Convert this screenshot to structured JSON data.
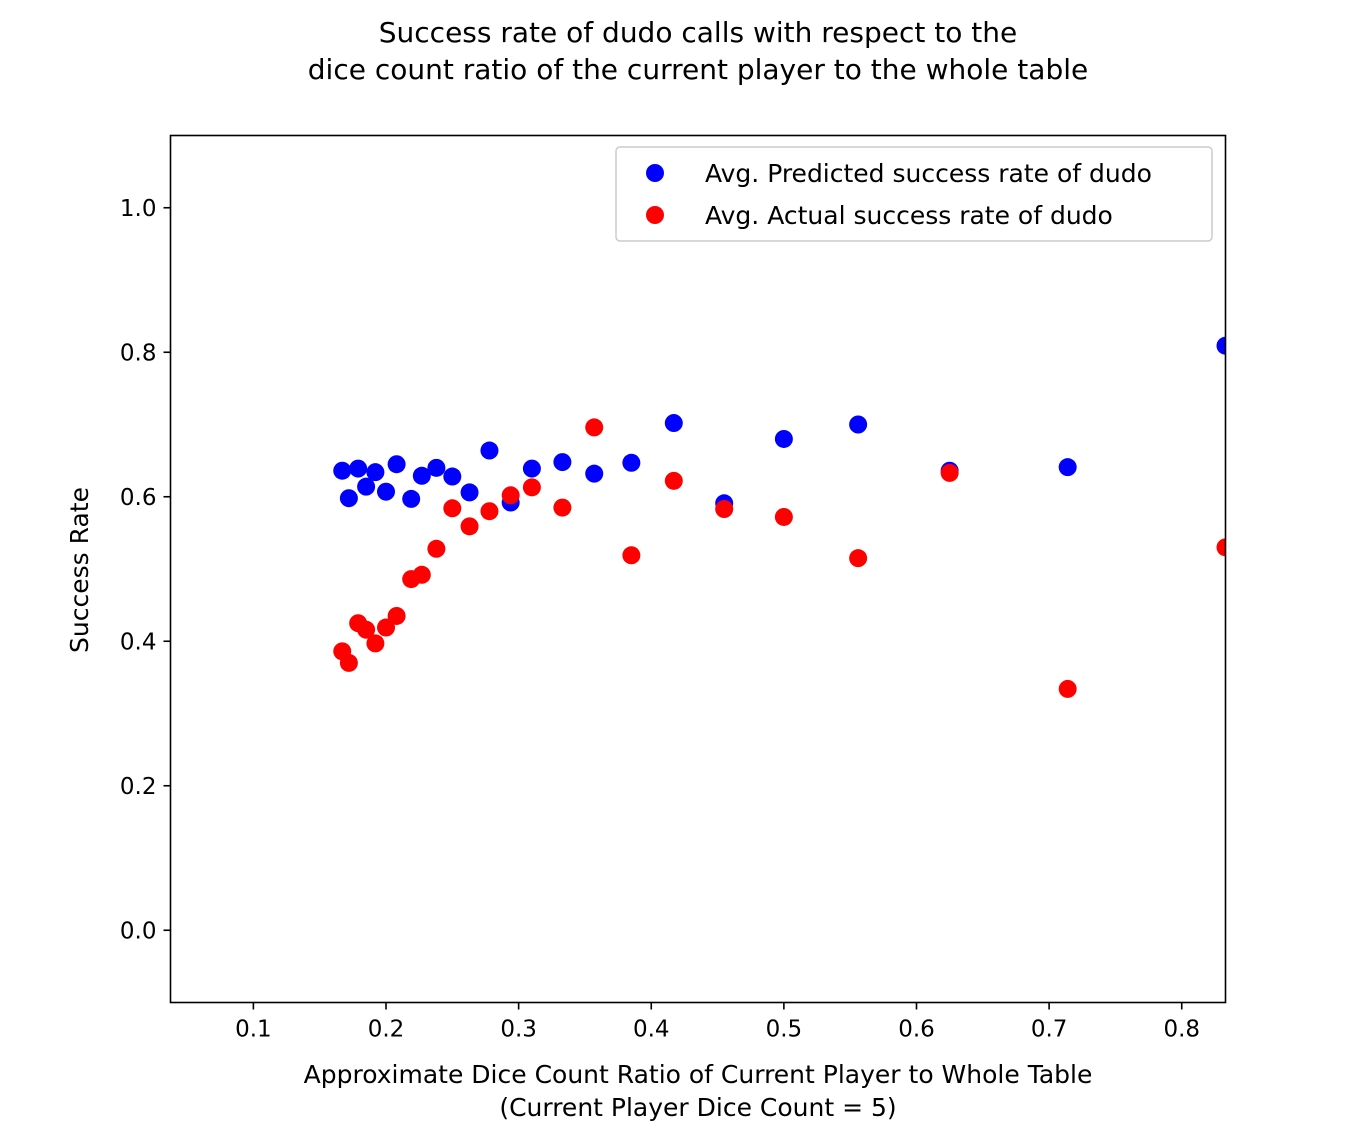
{
  "chart_data": {
    "type": "scatter",
    "title_lines": [
      "Success rate of dudo calls with respect to the",
      "dice count ratio of the current player to the whole table"
    ],
    "xlabel_lines": [
      "Approximate Dice Count Ratio of Current Player to Whole Table",
      "(Current Player Dice Count = 5)"
    ],
    "ylabel": "Success Rate",
    "xlim": [
      0.0375,
      0.833
    ],
    "ylim": [
      -0.1,
      1.1
    ],
    "xticks": [
      "0.1",
      "0.2",
      "0.3",
      "0.4",
      "0.5",
      "0.6",
      "0.7",
      "0.8"
    ],
    "yticks": [
      "0.0",
      "0.2",
      "0.4",
      "0.6",
      "0.8",
      "1.0"
    ],
    "legend_position": "upper right",
    "grid": false,
    "series": [
      {
        "name": "Avg. Predicted success rate of dudo",
        "color": "#0000ff",
        "points": [
          [
            0.167,
            0.636
          ],
          [
            0.172,
            0.598
          ],
          [
            0.179,
            0.639
          ],
          [
            0.185,
            0.614
          ],
          [
            0.192,
            0.634
          ],
          [
            0.2,
            0.607
          ],
          [
            0.208,
            0.645
          ],
          [
            0.219,
            0.597
          ],
          [
            0.227,
            0.629
          ],
          [
            0.238,
            0.64
          ],
          [
            0.25,
            0.628
          ],
          [
            0.263,
            0.606
          ],
          [
            0.278,
            0.664
          ],
          [
            0.294,
            0.592
          ],
          [
            0.31,
            0.639
          ],
          [
            0.333,
            0.648
          ],
          [
            0.357,
            0.632
          ],
          [
            0.385,
            0.647
          ],
          [
            0.417,
            0.702
          ],
          [
            0.455,
            0.591
          ],
          [
            0.5,
            0.68
          ],
          [
            0.556,
            0.7
          ],
          [
            0.625,
            0.636
          ],
          [
            0.714,
            0.641
          ],
          [
            0.833,
            0.809
          ]
        ]
      },
      {
        "name": "Avg. Actual success rate of dudo",
        "color": "#ff0000",
        "points": [
          [
            0.167,
            0.386
          ],
          [
            0.172,
            0.37
          ],
          [
            0.179,
            0.425
          ],
          [
            0.185,
            0.416
          ],
          [
            0.192,
            0.397
          ],
          [
            0.2,
            0.419
          ],
          [
            0.208,
            0.435
          ],
          [
            0.219,
            0.486
          ],
          [
            0.227,
            0.492
          ],
          [
            0.238,
            0.528
          ],
          [
            0.25,
            0.584
          ],
          [
            0.263,
            0.559
          ],
          [
            0.278,
            0.58
          ],
          [
            0.294,
            0.602
          ],
          [
            0.31,
            0.613
          ],
          [
            0.333,
            0.585
          ],
          [
            0.357,
            0.696
          ],
          [
            0.385,
            0.519
          ],
          [
            0.417,
            0.622
          ],
          [
            0.455,
            0.583
          ],
          [
            0.5,
            0.572
          ],
          [
            0.556,
            0.515
          ],
          [
            0.625,
            0.633
          ],
          [
            0.714,
            0.334
          ],
          [
            0.833,
            0.53
          ]
        ]
      }
    ]
  }
}
